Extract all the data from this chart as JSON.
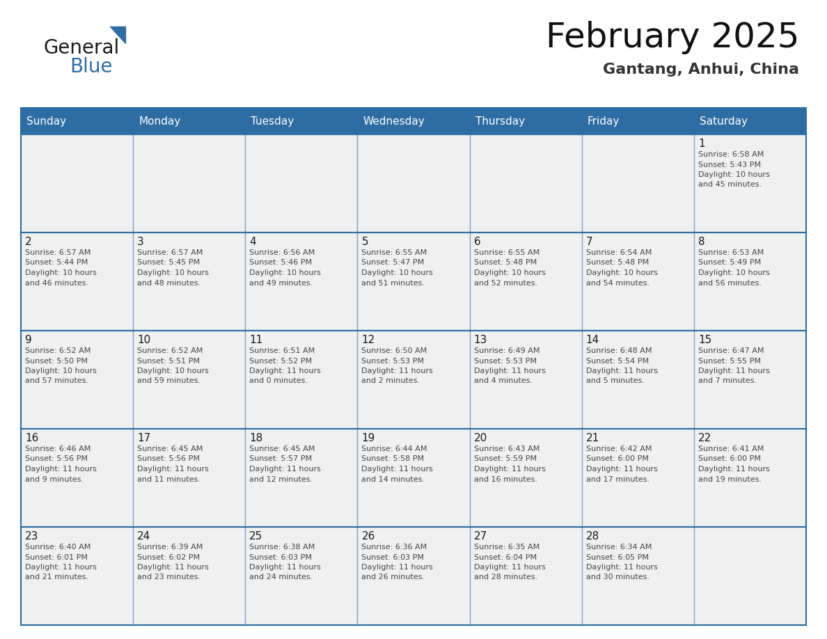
{
  "title": "February 2025",
  "subtitle": "Gantang, Anhui, China",
  "header_bg": "#2E6DA4",
  "header_text": "#FFFFFF",
  "cell_bg_light": "#F0F0F0",
  "border_color": "#2E6DA4",
  "text_color": "#333333",
  "day_headers": [
    "Sunday",
    "Monday",
    "Tuesday",
    "Wednesday",
    "Thursday",
    "Friday",
    "Saturday"
  ],
  "weeks": [
    [
      {
        "day": "",
        "info": ""
      },
      {
        "day": "",
        "info": ""
      },
      {
        "day": "",
        "info": ""
      },
      {
        "day": "",
        "info": ""
      },
      {
        "day": "",
        "info": ""
      },
      {
        "day": "",
        "info": ""
      },
      {
        "day": "1",
        "info": "Sunrise: 6:58 AM\nSunset: 5:43 PM\nDaylight: 10 hours\nand 45 minutes."
      }
    ],
    [
      {
        "day": "2",
        "info": "Sunrise: 6:57 AM\nSunset: 5:44 PM\nDaylight: 10 hours\nand 46 minutes."
      },
      {
        "day": "3",
        "info": "Sunrise: 6:57 AM\nSunset: 5:45 PM\nDaylight: 10 hours\nand 48 minutes."
      },
      {
        "day": "4",
        "info": "Sunrise: 6:56 AM\nSunset: 5:46 PM\nDaylight: 10 hours\nand 49 minutes."
      },
      {
        "day": "5",
        "info": "Sunrise: 6:55 AM\nSunset: 5:47 PM\nDaylight: 10 hours\nand 51 minutes."
      },
      {
        "day": "6",
        "info": "Sunrise: 6:55 AM\nSunset: 5:48 PM\nDaylight: 10 hours\nand 52 minutes."
      },
      {
        "day": "7",
        "info": "Sunrise: 6:54 AM\nSunset: 5:48 PM\nDaylight: 10 hours\nand 54 minutes."
      },
      {
        "day": "8",
        "info": "Sunrise: 6:53 AM\nSunset: 5:49 PM\nDaylight: 10 hours\nand 56 minutes."
      }
    ],
    [
      {
        "day": "9",
        "info": "Sunrise: 6:52 AM\nSunset: 5:50 PM\nDaylight: 10 hours\nand 57 minutes."
      },
      {
        "day": "10",
        "info": "Sunrise: 6:52 AM\nSunset: 5:51 PM\nDaylight: 10 hours\nand 59 minutes."
      },
      {
        "day": "11",
        "info": "Sunrise: 6:51 AM\nSunset: 5:52 PM\nDaylight: 11 hours\nand 0 minutes."
      },
      {
        "day": "12",
        "info": "Sunrise: 6:50 AM\nSunset: 5:53 PM\nDaylight: 11 hours\nand 2 minutes."
      },
      {
        "day": "13",
        "info": "Sunrise: 6:49 AM\nSunset: 5:53 PM\nDaylight: 11 hours\nand 4 minutes."
      },
      {
        "day": "14",
        "info": "Sunrise: 6:48 AM\nSunset: 5:54 PM\nDaylight: 11 hours\nand 5 minutes."
      },
      {
        "day": "15",
        "info": "Sunrise: 6:47 AM\nSunset: 5:55 PM\nDaylight: 11 hours\nand 7 minutes."
      }
    ],
    [
      {
        "day": "16",
        "info": "Sunrise: 6:46 AM\nSunset: 5:56 PM\nDaylight: 11 hours\nand 9 minutes."
      },
      {
        "day": "17",
        "info": "Sunrise: 6:45 AM\nSunset: 5:56 PM\nDaylight: 11 hours\nand 11 minutes."
      },
      {
        "day": "18",
        "info": "Sunrise: 6:45 AM\nSunset: 5:57 PM\nDaylight: 11 hours\nand 12 minutes."
      },
      {
        "day": "19",
        "info": "Sunrise: 6:44 AM\nSunset: 5:58 PM\nDaylight: 11 hours\nand 14 minutes."
      },
      {
        "day": "20",
        "info": "Sunrise: 6:43 AM\nSunset: 5:59 PM\nDaylight: 11 hours\nand 16 minutes."
      },
      {
        "day": "21",
        "info": "Sunrise: 6:42 AM\nSunset: 6:00 PM\nDaylight: 11 hours\nand 17 minutes."
      },
      {
        "day": "22",
        "info": "Sunrise: 6:41 AM\nSunset: 6:00 PM\nDaylight: 11 hours\nand 19 minutes."
      }
    ],
    [
      {
        "day": "23",
        "info": "Sunrise: 6:40 AM\nSunset: 6:01 PM\nDaylight: 11 hours\nand 21 minutes."
      },
      {
        "day": "24",
        "info": "Sunrise: 6:39 AM\nSunset: 6:02 PM\nDaylight: 11 hours\nand 23 minutes."
      },
      {
        "day": "25",
        "info": "Sunrise: 6:38 AM\nSunset: 6:03 PM\nDaylight: 11 hours\nand 24 minutes."
      },
      {
        "day": "26",
        "info": "Sunrise: 6:36 AM\nSunset: 6:03 PM\nDaylight: 11 hours\nand 26 minutes."
      },
      {
        "day": "27",
        "info": "Sunrise: 6:35 AM\nSunset: 6:04 PM\nDaylight: 11 hours\nand 28 minutes."
      },
      {
        "day": "28",
        "info": "Sunrise: 6:34 AM\nSunset: 6:05 PM\nDaylight: 11 hours\nand 30 minutes."
      },
      {
        "day": "",
        "info": ""
      }
    ]
  ],
  "logo_general_color": "#1a1a1a",
  "logo_blue_color": "#2E6DA4",
  "logo_triangle_color": "#2E6DA4",
  "title_fontsize": 36,
  "subtitle_fontsize": 16,
  "day_header_fontsize": 11,
  "day_num_fontsize": 11,
  "info_fontsize": 8
}
